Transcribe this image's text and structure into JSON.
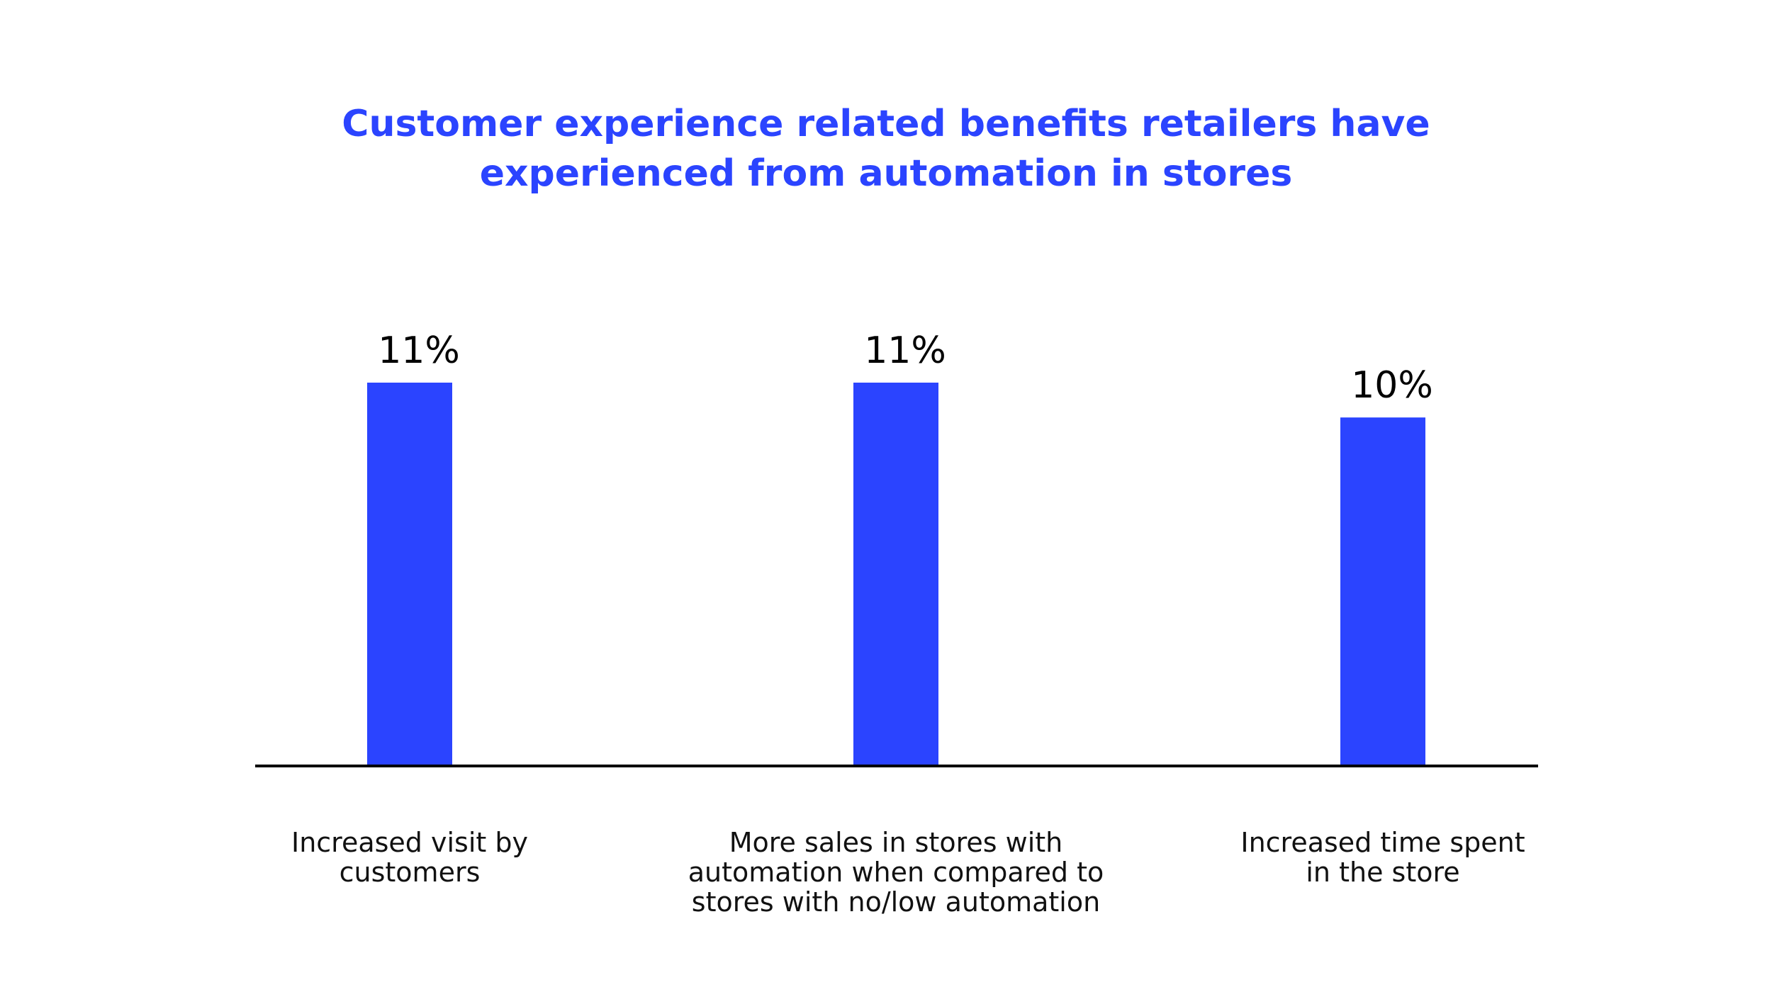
{
  "chart_data": {
    "type": "bar",
    "title_lines": [
      "Customer experience related benefits retailers have",
      "experienced from automation in stores"
    ],
    "categories": [
      [
        "Increased visit by",
        "customers"
      ],
      [
        "More sales in stores with",
        "automation when compared to",
        "stores with no/low automation"
      ],
      [
        "Increased time spent",
        "in the store"
      ]
    ],
    "values": [
      11,
      11,
      10
    ],
    "value_labels": [
      "11%",
      "11%",
      "10%"
    ],
    "unit": "%",
    "ylim": [
      0,
      11
    ],
    "grid": false,
    "legend": "none",
    "xlabel": "",
    "ylabel": ""
  },
  "colors": {
    "bar": "#2b44ff",
    "title": "#2b44ff",
    "axis": "#000000",
    "text": "#111111"
  }
}
